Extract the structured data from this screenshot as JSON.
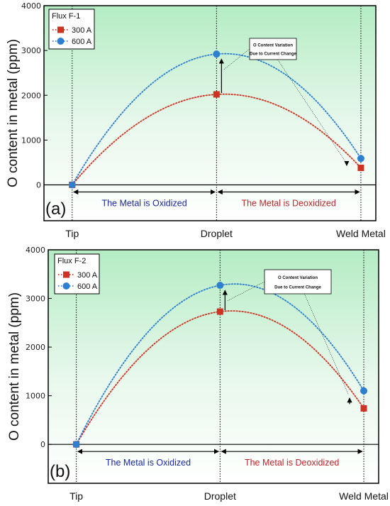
{
  "chart_data": [
    {
      "type": "line",
      "panel_label": "(a)",
      "ylabel": "O content in metal (ppm)",
      "ylim": [
        -800,
        4000
      ],
      "yticks": [
        0,
        1000,
        2000,
        3000,
        4000
      ],
      "categories": [
        "Tip",
        "Droplet",
        "Weld Metal"
      ],
      "legend_title": "Flux F-1",
      "legend_position": "top-left",
      "series": [
        {
          "name": "300 A",
          "values": [
            0,
            2020,
            380
          ],
          "color": "#cc3322",
          "marker": "square"
        },
        {
          "name": "600 A",
          "values": [
            0,
            2920,
            590
          ],
          "color": "#2f7fd0",
          "marker": "circle"
        }
      ],
      "regions": [
        {
          "text": "The Metal is Oxidized",
          "color": "#1a2a99"
        },
        {
          "text": "The Metal is Deoxidized",
          "color": "#b8282a"
        }
      ],
      "annotation": {
        "line1": "O Content Variation",
        "line2": "Due to Current Change"
      }
    },
    {
      "type": "line",
      "panel_label": "(b)",
      "ylabel": "O content in metal (ppm)",
      "ylim": [
        -800,
        4000
      ],
      "yticks": [
        0,
        1000,
        2000,
        3000,
        4000
      ],
      "categories": [
        "Tip",
        "Droplet",
        "Weld Metal"
      ],
      "legend_title": "Flux F-2",
      "legend_position": "top-left",
      "series": [
        {
          "name": "300 A",
          "values": [
            0,
            2730,
            740
          ],
          "color": "#cc3322",
          "marker": "square"
        },
        {
          "name": "600 A",
          "values": [
            0,
            3270,
            1100
          ],
          "color": "#2f7fd0",
          "marker": "circle"
        }
      ],
      "regions": [
        {
          "text": "The Metal is Oxidized",
          "color": "#1a2a99"
        },
        {
          "text": "The Metal is Deoxidized",
          "color": "#b8282a"
        }
      ],
      "annotation": {
        "line1": "O Content Variation",
        "line2": "Due to Current Change"
      }
    }
  ]
}
